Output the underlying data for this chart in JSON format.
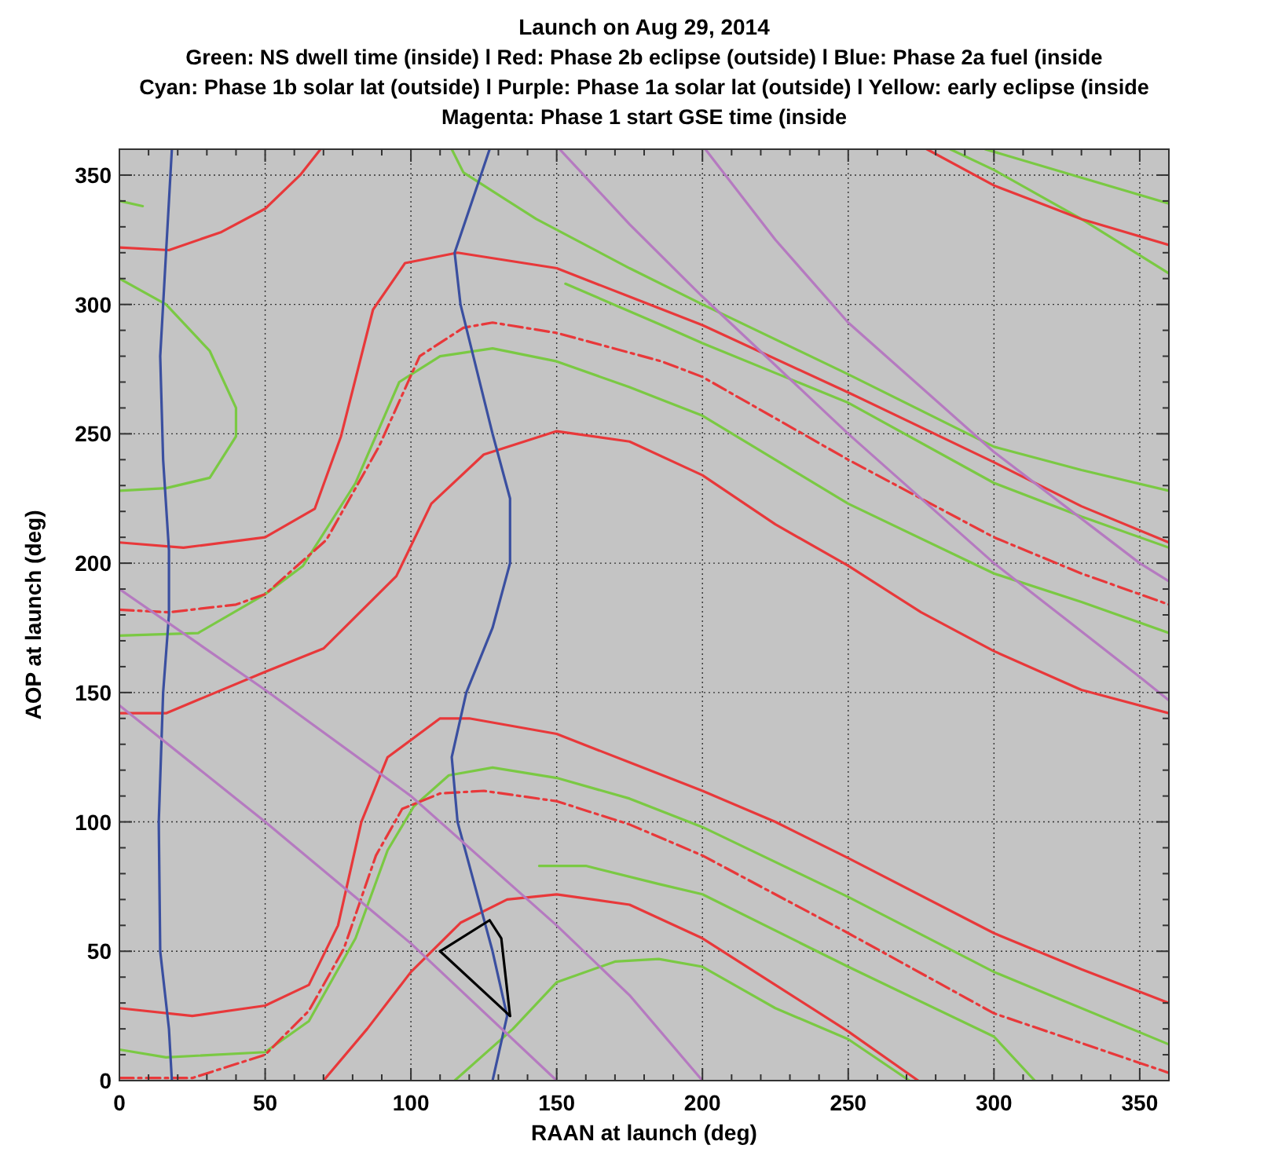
{
  "chart_data": {
    "type": "line",
    "title": "Launch on Aug 29, 2014",
    "subtitle": "Green: NS dwell time (inside) l Red: Phase 2b eclipse  (outside) l Blue: Phase 2a fuel (inside\nCyan: Phase 1b solar lat (outside) l Purple: Phase 1a solar lat (outside) l Yellow: early eclipse (inside\nMagenta: Phase 1 start GSE time (inside",
    "xlabel": "RAAN at launch (deg)",
    "ylabel": "AOP at launch (deg)",
    "xlim": [
      0,
      360
    ],
    "ylim": [
      0,
      360
    ],
    "grid": true,
    "xticks": [
      0,
      {
        "value": 10,
        "label": null
      },
      {
        "value": 20,
        "label": null
      },
      {
        "value": 30,
        "label": null
      },
      {
        "value": 40,
        "label": null
      },
      50,
      {
        "value": 60,
        "label": null
      },
      {
        "value": 70,
        "label": null
      },
      {
        "value": 80,
        "label": null
      },
      {
        "value": 90,
        "label": null
      },
      100,
      {
        "value": 110,
        "label": null
      },
      {
        "value": 120,
        "label": null
      },
      {
        "value": 130,
        "label": null
      },
      {
        "value": 140,
        "label": null
      },
      150,
      {
        "value": 160,
        "label": null
      },
      {
        "value": 170,
        "label": null
      },
      {
        "value": 180,
        "label": null
      },
      {
        "value": 190,
        "label": null
      },
      200,
      {
        "value": 210,
        "label": null
      },
      {
        "value": 220,
        "label": null
      },
      {
        "value": 230,
        "label": null
      },
      {
        "value": 240,
        "label": null
      },
      250,
      {
        "value": 260,
        "label": null
      },
      {
        "value": 270,
        "label": null
      },
      {
        "value": 280,
        "label": null
      },
      {
        "value": 290,
        "label": null
      },
      300,
      {
        "value": 310,
        "label": null
      },
      {
        "value": 320,
        "label": null
      },
      {
        "value": 330,
        "label": null
      },
      {
        "value": 340,
        "label": null
      },
      350
    ],
    "yticks": [
      0,
      {
        "value": 10,
        "label": null
      },
      {
        "value": 20,
        "label": null
      },
      {
        "value": 30,
        "label": null
      },
      {
        "value": 40,
        "label": null
      },
      50,
      {
        "value": 60,
        "label": null
      },
      {
        "value": 70,
        "label": null
      },
      {
        "value": 80,
        "label": null
      },
      {
        "value": 90,
        "label": null
      },
      100,
      {
        "value": 110,
        "label": null
      },
      {
        "value": 120,
        "label": null
      },
      {
        "value": 130,
        "label": null
      },
      {
        "value": 140,
        "label": null
      },
      150,
      {
        "value": 160,
        "label": null
      },
      {
        "value": 170,
        "label": null
      },
      {
        "value": 180,
        "label": null
      },
      {
        "value": 190,
        "label": null
      },
      200,
      {
        "value": 210,
        "label": null
      },
      {
        "value": 220,
        "label": null
      },
      {
        "value": 230,
        "label": null
      },
      {
        "value": 240,
        "label": null
      },
      250,
      {
        "value": 260,
        "label": null
      },
      {
        "value": 270,
        "label": null
      },
      {
        "value": 280,
        "label": null
      },
      {
        "value": 290,
        "label": null
      },
      300,
      {
        "value": 310,
        "label": null
      },
      {
        "value": 320,
        "label": null
      },
      {
        "value": 330,
        "label": null
      },
      {
        "value": 340,
        "label": null
      },
      350
    ],
    "series": [
      {
        "color": "#7ac943",
        "x": [
          0,
          8
        ],
        "values": [
          340,
          338
        ]
      },
      {
        "color": "#7ac943",
        "x": [
          0,
          16,
          31,
          40,
          40,
          31,
          16,
          0
        ],
        "values": [
          310,
          300,
          282,
          260,
          249,
          233,
          229,
          228
        ]
      },
      {
        "color": "#7ac943",
        "x": [
          0,
          27,
          50,
          63,
          81,
          96,
          110,
          128,
          150,
          175,
          200,
          250,
          300,
          330,
          360
        ],
        "values": [
          172,
          173,
          188,
          199,
          231,
          270,
          280,
          283,
          278,
          268,
          257,
          223,
          196,
          185,
          173
        ]
      },
      {
        "color": "#7ac943",
        "x": [
          114,
          118,
          143,
          175,
          200,
          250,
          300,
          330,
          360
        ],
        "values": [
          360,
          351,
          333,
          314,
          300,
          273,
          245,
          236,
          228
        ]
      },
      {
        "color": "#7ac943",
        "x": [
          153,
          186,
          200,
          250,
          300,
          330,
          360
        ],
        "values": [
          308,
          292,
          285,
          262,
          231,
          218,
          206
        ]
      },
      {
        "color": "#7ac943",
        "x": [
          297,
          330,
          360
        ],
        "values": [
          360,
          349,
          339
        ]
      },
      {
        "color": "#7ac943",
        "x": [
          285,
          300,
          330,
          360
        ],
        "values": [
          360,
          352,
          333,
          312
        ]
      },
      {
        "color": "#7ac943",
        "x": [
          0,
          16,
          50,
          65,
          81,
          92,
          101,
          113,
          128,
          150,
          175,
          200,
          250,
          300,
          360
        ],
        "values": [
          12,
          9,
          11,
          23,
          55,
          89,
          106,
          118,
          121,
          117,
          109,
          98,
          71,
          42,
          14
        ]
      },
      {
        "color": "#7ac943",
        "x": [
          144,
          160,
          185,
          200,
          250,
          300,
          314
        ],
        "values": [
          83,
          83,
          76,
          72,
          44,
          17,
          0
        ]
      },
      {
        "color": "#7ac943",
        "x": [
          115,
          135,
          150,
          170,
          185,
          200,
          225,
          250,
          271
        ],
        "values": [
          0,
          20,
          38,
          46,
          47,
          44,
          28,
          16,
          0
        ]
      },
      {
        "color": "#e8383a",
        "x": [
          0,
          17,
          35,
          50,
          62,
          69
        ],
        "values": [
          322,
          321,
          328,
          337,
          350,
          360
        ]
      },
      {
        "color": "#e8383a",
        "x": [
          277,
          300,
          330,
          360
        ],
        "values": [
          360,
          346,
          333,
          323
        ]
      },
      {
        "color": "#e8383a",
        "x": [
          0,
          22,
          50,
          67,
          76,
          87,
          98,
          116,
          150,
          175,
          200,
          250,
          300,
          330,
          360
        ],
        "values": [
          208,
          206,
          210,
          221,
          249,
          298,
          316,
          320,
          314,
          303,
          292,
          266,
          239,
          222,
          208
        ]
      },
      {
        "color": "#e8383a",
        "x": [
          0,
          16,
          50,
          70,
          95,
          107,
          125,
          150,
          175,
          200,
          225,
          250,
          275,
          300,
          330,
          360
        ],
        "values": [
          142,
          142,
          158,
          167,
          195,
          223,
          242,
          251,
          247,
          234,
          215,
          199,
          181,
          166,
          151,
          142
        ]
      },
      {
        "color": "#e8383a",
        "x": [
          0,
          25,
          50,
          65,
          75,
          83,
          92,
          110,
          120,
          150,
          175,
          200,
          225,
          250,
          300,
          330,
          360
        ],
        "values": [
          28,
          25,
          29,
          37,
          60,
          100,
          125,
          140,
          140,
          134,
          123,
          112,
          100,
          86,
          57,
          43,
          30
        ]
      },
      {
        "color": "#e8383a",
        "x": [
          70,
          85,
          100,
          117,
          133,
          150,
          175,
          200,
          225,
          250,
          274
        ],
        "values": [
          0,
          20,
          42,
          61,
          70,
          72,
          68,
          55,
          37,
          19,
          0
        ]
      },
      {
        "color": "#e8383a",
        "line_style": "dashed",
        "x": [
          0,
          17,
          40,
          50,
          63,
          71,
          89,
          103,
          118,
          128,
          150,
          186,
          200,
          250,
          300,
          330,
          360
        ],
        "values": [
          182,
          181,
          184,
          188,
          201,
          209,
          245,
          280,
          291,
          293,
          289,
          278,
          272,
          240,
          210,
          196,
          184
        ]
      },
      {
        "color": "#e8383a",
        "line_style": "dashed",
        "x": [
          0,
          25,
          50,
          65,
          77,
          88,
          97,
          110,
          125,
          150,
          175,
          200,
          250,
          300,
          360
        ],
        "values": [
          1,
          1,
          10,
          27,
          51,
          87,
          105,
          111,
          112,
          108,
          99,
          87,
          57,
          26,
          3
        ]
      },
      {
        "color": "#3a4fa0",
        "x": [
          18,
          16,
          14,
          15,
          17,
          17,
          15,
          13.5,
          14,
          17,
          18
        ],
        "values": [
          360,
          320,
          280,
          240,
          205,
          180,
          150,
          100,
          50,
          20,
          0
        ]
      },
      {
        "color": "#3a4fa0",
        "x": [
          127,
          115,
          117,
          128,
          134,
          134,
          128,
          119,
          114,
          116,
          122,
          128,
          133,
          128
        ],
        "values": [
          360,
          320,
          300,
          250,
          225,
          200,
          175,
          150,
          125,
          100,
          75,
          50,
          25,
          0
        ]
      },
      {
        "color": "#b57ac0",
        "x": [
          0,
          50,
          100,
          150,
          175,
          200
        ],
        "values": [
          190,
          151,
          110,
          60,
          33,
          0
        ]
      },
      {
        "color": "#b57ac0",
        "x": [
          0,
          50,
          100,
          150
        ],
        "values": [
          145,
          100,
          53,
          0
        ]
      },
      {
        "color": "#b57ac0",
        "x": [
          151,
          175,
          200,
          250,
          300,
          325,
          350,
          360
        ],
        "values": [
          360,
          331,
          303,
          250,
          200,
          178,
          156,
          147
        ]
      },
      {
        "color": "#b57ac0",
        "x": [
          201,
          225,
          250,
          300,
          350,
          360
        ],
        "values": [
          360,
          325,
          293,
          243,
          200,
          193
        ]
      },
      {
        "color": "#000000",
        "x": [
          110,
          127,
          131,
          134
        ],
        "values": [
          50,
          62,
          55,
          25
        ]
      },
      {
        "color": "#000000",
        "x": [
          110,
          134
        ],
        "values": [
          50,
          25
        ]
      }
    ]
  }
}
